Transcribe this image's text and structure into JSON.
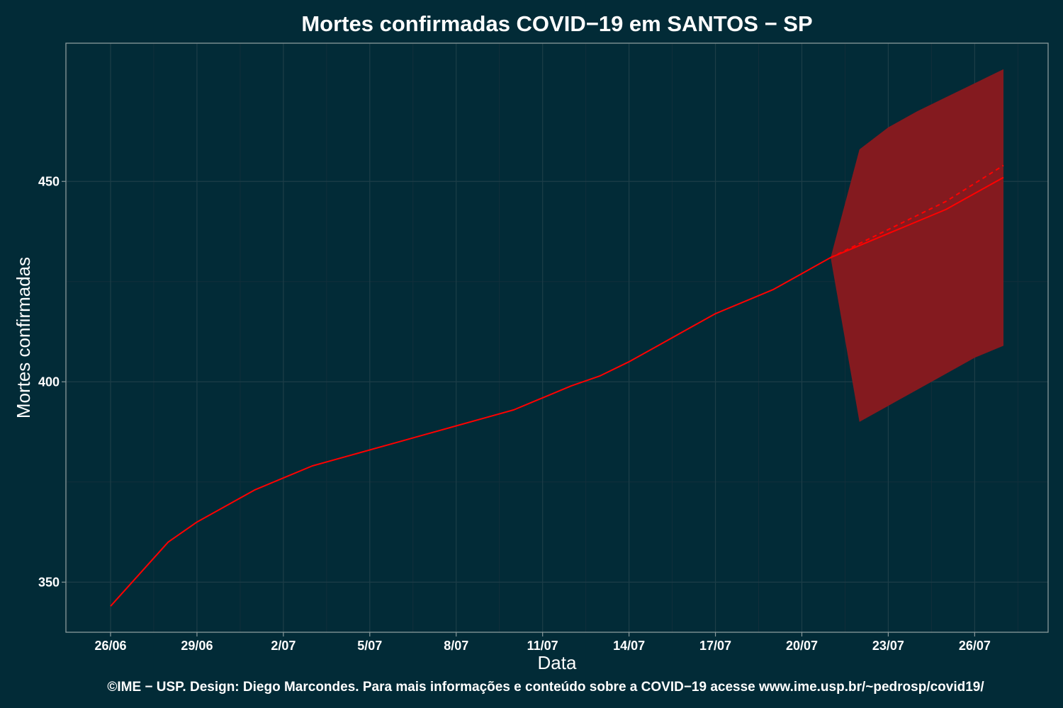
{
  "chart_data": {
    "type": "line",
    "title": "Mortes confirmadas COVID−19 em SANTOS − SP",
    "xlabel": "Data",
    "ylabel": "Mortes confirmadas",
    "caption": "©IME − USP. Design: Diego Marcondes. Para mais informações e conteúdo sobre a COVID−19 acesse www.ime.usp.br/~pedrosp/covid19/",
    "x_tick_labels": [
      "26/06",
      "29/06",
      "2/07",
      "5/07",
      "8/07",
      "11/07",
      "14/07",
      "17/07",
      "20/07",
      "23/07",
      "26/07"
    ],
    "y_ticks": [
      350,
      400,
      450
    ],
    "ylim": [
      337.5,
      484.5
    ],
    "xlim_day_index": [
      -1.55,
      32.55
    ],
    "grid": true,
    "colors": {
      "background": "#022b37",
      "line": "#ff0000",
      "band": "#841a1f",
      "grid_major": "#1d3e48",
      "grid_minor": "#122f3b",
      "frame": "#8a9a9c"
    },
    "series": [
      {
        "kind": "observed",
        "x": [
          "26/06",
          "27/06",
          "28/06",
          "29/06",
          "30/06",
          "1/07",
          "2/07",
          "3/07",
          "4/07",
          "5/07",
          "6/07",
          "7/07",
          "8/07",
          "9/07",
          "10/07",
          "11/07",
          "12/07",
          "13/07",
          "14/07",
          "15/07",
          "16/07",
          "17/07",
          "18/07",
          "19/07",
          "20/07",
          "21/07"
        ],
        "values": [
          344,
          352,
          360,
          365,
          369,
          373,
          376,
          379,
          381,
          383,
          385,
          387,
          389,
          391,
          393,
          396,
          399,
          401.5,
          405,
          409,
          413,
          417,
          420,
          423,
          427,
          431
        ]
      },
      {
        "kind": "forecast",
        "style": "solid",
        "x": [
          "21/07",
          "22/07",
          "23/07",
          "24/07",
          "25/07",
          "26/07",
          "27/07"
        ],
        "values": [
          431,
          434,
          437,
          440,
          443,
          447,
          451
        ]
      },
      {
        "kind": "forecast",
        "style": "dashed",
        "x": [
          "21/07",
          "22/07",
          "23/07",
          "24/07",
          "25/07",
          "26/07",
          "27/07"
        ],
        "values": [
          431,
          434.5,
          438,
          441.5,
          445,
          449.5,
          454
        ]
      },
      {
        "kind": "forecast_interval",
        "x": [
          "21/07",
          "22/07",
          "23/07",
          "24/07",
          "25/07",
          "26/07",
          "27/07"
        ],
        "lower": [
          431,
          390,
          394,
          398,
          402,
          406,
          409
        ],
        "upper": [
          431,
          458,
          463.5,
          467.5,
          471,
          474.5,
          478
        ]
      }
    ]
  }
}
